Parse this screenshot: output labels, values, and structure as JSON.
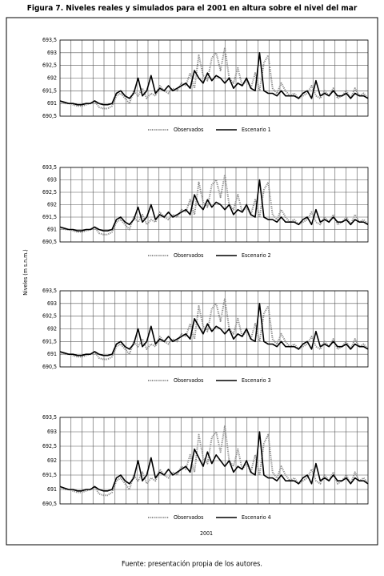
{
  "title": "Figura 7. Niveles reales y simulados para el 2001 en altura sobre el nivel del mar",
  "y_axis_label": "Niveles (m s.n.m.)",
  "x_axis_label": "2001",
  "source": "Fuente: presentación propia de los autores.",
  "chart_data": [
    {
      "type": "line",
      "ylim": [
        690.5,
        693.5
      ],
      "yticks": [
        {
          "value": 690.5,
          "label": "690,5"
        },
        691,
        {
          "value": 691.5,
          "label": "691,5"
        },
        692,
        {
          "value": 692.5,
          "label": "692,5"
        },
        693,
        {
          "value": 693.5,
          "label": "693,5"
        }
      ],
      "grid": true,
      "series": [
        {
          "name": "Observados",
          "color": "#8c8c8c",
          "line_style": "dotted",
          "values": [
            691.1,
            691.0,
            691.0,
            690.95,
            690.9,
            690.9,
            690.95,
            691.0,
            691.1,
            690.85,
            690.8,
            690.8,
            690.9,
            691.3,
            691.4,
            691.2,
            691.0,
            691.5,
            691.3,
            691.6,
            691.2,
            691.4,
            691.3,
            691.7,
            691.5,
            691.4,
            691.6,
            691.5,
            691.8,
            691.7,
            692.2,
            691.6,
            692.9,
            692.1,
            691.9,
            692.8,
            693.0,
            692.3,
            693.2,
            692.0,
            691.8,
            692.4,
            691.7,
            691.9,
            691.6,
            692.2,
            691.5,
            692.6,
            692.9,
            691.6,
            691.4,
            691.8,
            691.5,
            691.3,
            691.4,
            691.2,
            691.3,
            691.4,
            691.7,
            691.3,
            691.2,
            691.5,
            691.3,
            691.6,
            691.2,
            691.3,
            691.5,
            691.2,
            691.6,
            691.3,
            691.4,
            691.2
          ]
        },
        {
          "name": "Escenario 1",
          "color": "#000000",
          "line_style": "solid",
          "values": [
            691.1,
            691.05,
            691.0,
            691.0,
            690.95,
            690.95,
            691.0,
            691.0,
            691.1,
            691.0,
            690.95,
            690.95,
            691.0,
            691.4,
            691.5,
            691.3,
            691.2,
            691.4,
            692.0,
            691.3,
            691.5,
            692.1,
            691.4,
            691.6,
            691.5,
            691.7,
            691.5,
            691.6,
            691.7,
            691.8,
            691.6,
            692.3,
            692.0,
            691.8,
            692.2,
            691.9,
            692.1,
            692.0,
            691.8,
            692.0,
            691.6,
            691.8,
            691.7,
            692.0,
            691.6,
            691.5,
            693.0,
            691.5,
            691.4,
            691.4,
            691.3,
            691.5,
            691.3,
            691.3,
            691.3,
            691.2,
            691.4,
            691.5,
            691.2,
            691.9,
            691.3,
            691.4,
            691.3,
            691.5,
            691.3,
            691.3,
            691.4,
            691.2,
            691.4,
            691.3,
            691.3,
            691.2
          ]
        }
      ]
    },
    {
      "type": "line",
      "ylim": [
        690.5,
        693.5
      ],
      "yticks": [
        {
          "value": 690.5,
          "label": "690,5"
        },
        691,
        {
          "value": 691.5,
          "label": "691,5"
        },
        692,
        {
          "value": 692.5,
          "label": "692,5"
        },
        693,
        {
          "value": 693.5,
          "label": "693,5"
        }
      ],
      "grid": true,
      "series": [
        {
          "name": "Observados",
          "color": "#8c8c8c",
          "line_style": "dotted",
          "values": [
            691.1,
            691.0,
            691.0,
            690.95,
            690.9,
            690.9,
            690.95,
            691.0,
            691.1,
            690.85,
            690.8,
            690.8,
            690.9,
            691.3,
            691.4,
            691.2,
            691.0,
            691.5,
            691.3,
            691.6,
            691.2,
            691.4,
            691.3,
            691.7,
            691.5,
            691.4,
            691.6,
            691.5,
            691.8,
            691.7,
            692.2,
            691.6,
            692.9,
            692.1,
            691.9,
            692.8,
            693.0,
            692.3,
            693.2,
            692.0,
            691.8,
            692.4,
            691.7,
            691.9,
            691.6,
            692.2,
            691.5,
            692.6,
            692.9,
            691.6,
            691.4,
            691.8,
            691.5,
            691.3,
            691.4,
            691.2,
            691.3,
            691.4,
            691.7,
            691.3,
            691.2,
            691.5,
            691.3,
            691.6,
            691.2,
            691.3,
            691.5,
            691.2,
            691.6,
            691.3,
            691.4,
            691.2
          ]
        },
        {
          "name": "Escenario 2",
          "color": "#000000",
          "line_style": "solid",
          "values": [
            691.1,
            691.05,
            691.0,
            691.0,
            690.95,
            690.95,
            691.0,
            691.0,
            691.1,
            691.0,
            690.95,
            690.95,
            691.0,
            691.4,
            691.5,
            691.3,
            691.2,
            691.4,
            691.9,
            691.3,
            691.5,
            692.0,
            691.4,
            691.6,
            691.5,
            691.7,
            691.5,
            691.6,
            691.7,
            691.8,
            691.6,
            692.4,
            692.0,
            691.8,
            692.2,
            691.9,
            692.1,
            692.0,
            691.8,
            692.0,
            691.6,
            691.8,
            691.7,
            692.0,
            691.6,
            691.5,
            693.0,
            691.5,
            691.4,
            691.4,
            691.3,
            691.5,
            691.3,
            691.3,
            691.3,
            691.2,
            691.4,
            691.5,
            691.2,
            691.8,
            691.3,
            691.4,
            691.3,
            691.5,
            691.3,
            691.3,
            691.4,
            691.2,
            691.4,
            691.3,
            691.3,
            691.2
          ]
        }
      ]
    },
    {
      "type": "line",
      "ylim": [
        690.5,
        693.5
      ],
      "yticks": [
        {
          "value": 690.5,
          "label": "690,5"
        },
        691,
        {
          "value": 691.5,
          "label": "691,5"
        },
        692,
        {
          "value": 692.5,
          "label": "692,5"
        },
        693,
        {
          "value": 693.5,
          "label": "693,5"
        }
      ],
      "grid": true,
      "series": [
        {
          "name": "Observados",
          "color": "#8c8c8c",
          "line_style": "dotted",
          "values": [
            691.1,
            691.0,
            691.0,
            690.95,
            690.9,
            690.9,
            690.95,
            691.0,
            691.1,
            690.85,
            690.8,
            690.8,
            690.9,
            691.3,
            691.4,
            691.2,
            691.0,
            691.5,
            691.3,
            691.6,
            691.2,
            691.4,
            691.3,
            691.7,
            691.5,
            691.4,
            691.6,
            691.5,
            691.8,
            691.7,
            692.2,
            691.6,
            692.9,
            692.1,
            691.9,
            692.8,
            693.0,
            692.3,
            693.2,
            692.0,
            691.8,
            692.4,
            691.7,
            691.9,
            691.6,
            692.2,
            691.5,
            692.6,
            692.9,
            691.6,
            691.4,
            691.8,
            691.5,
            691.3,
            691.4,
            691.2,
            691.3,
            691.4,
            691.7,
            691.3,
            691.2,
            691.5,
            691.3,
            691.6,
            691.2,
            691.3,
            691.5,
            691.2,
            691.6,
            691.3,
            691.4,
            691.2
          ]
        },
        {
          "name": "Escenario 3",
          "color": "#000000",
          "line_style": "solid",
          "values": [
            691.1,
            691.05,
            691.0,
            691.0,
            690.95,
            690.95,
            691.0,
            691.0,
            691.1,
            691.0,
            690.95,
            690.95,
            691.0,
            691.4,
            691.5,
            691.3,
            691.2,
            691.4,
            692.0,
            691.3,
            691.5,
            692.1,
            691.4,
            691.6,
            691.5,
            691.7,
            691.5,
            691.6,
            691.7,
            691.8,
            691.6,
            692.4,
            692.1,
            691.8,
            692.2,
            691.9,
            692.1,
            692.0,
            691.8,
            692.0,
            691.6,
            691.8,
            691.7,
            692.0,
            691.6,
            691.5,
            693.0,
            691.5,
            691.4,
            691.4,
            691.3,
            691.5,
            691.3,
            691.3,
            691.3,
            691.2,
            691.4,
            691.5,
            691.2,
            691.9,
            691.3,
            691.4,
            691.3,
            691.5,
            691.3,
            691.3,
            691.4,
            691.2,
            691.4,
            691.3,
            691.3,
            691.2
          ]
        }
      ]
    },
    {
      "type": "line",
      "ylim": [
        690.5,
        693.5
      ],
      "yticks": [
        {
          "value": 690.5,
          "label": "690,5"
        },
        691,
        {
          "value": 691.5,
          "label": "691,5"
        },
        692,
        {
          "value": 692.5,
          "label": "692,5"
        },
        693,
        {
          "value": 693.5,
          "label": "693,5"
        }
      ],
      "grid": true,
      "series": [
        {
          "name": "Observados",
          "color": "#8c8c8c",
          "line_style": "dotted",
          "values": [
            691.1,
            691.0,
            691.0,
            690.95,
            690.9,
            690.9,
            690.95,
            691.0,
            691.1,
            690.85,
            690.8,
            690.8,
            690.9,
            691.3,
            691.4,
            691.2,
            691.0,
            691.5,
            691.3,
            691.6,
            691.2,
            691.4,
            691.3,
            691.7,
            691.5,
            691.4,
            691.6,
            691.5,
            691.8,
            691.7,
            692.2,
            691.6,
            692.9,
            692.1,
            691.9,
            692.8,
            693.0,
            692.3,
            693.2,
            692.0,
            691.8,
            692.4,
            691.7,
            691.9,
            691.6,
            692.2,
            691.5,
            692.6,
            692.9,
            691.6,
            691.4,
            691.8,
            691.5,
            691.3,
            691.4,
            691.2,
            691.3,
            691.4,
            691.7,
            691.3,
            691.2,
            691.5,
            691.3,
            691.6,
            691.2,
            691.3,
            691.5,
            691.2,
            691.6,
            691.3,
            691.4,
            691.2
          ]
        },
        {
          "name": "Escenario 4",
          "color": "#000000",
          "line_style": "solid",
          "values": [
            691.1,
            691.05,
            691.0,
            691.0,
            690.95,
            690.95,
            691.0,
            691.0,
            691.1,
            691.0,
            690.95,
            690.95,
            691.0,
            691.4,
            691.5,
            691.3,
            691.2,
            691.4,
            692.0,
            691.3,
            691.5,
            692.1,
            691.4,
            691.6,
            691.5,
            691.7,
            691.5,
            691.6,
            691.7,
            691.8,
            691.6,
            692.4,
            692.1,
            691.8,
            692.3,
            691.9,
            692.2,
            692.0,
            691.8,
            692.0,
            691.6,
            691.8,
            691.7,
            692.0,
            691.6,
            691.5,
            693.0,
            691.5,
            691.4,
            691.4,
            691.3,
            691.5,
            691.3,
            691.3,
            691.3,
            691.2,
            691.4,
            691.5,
            691.2,
            691.9,
            691.3,
            691.4,
            691.3,
            691.5,
            691.3,
            691.3,
            691.4,
            691.2,
            691.4,
            691.3,
            691.3,
            691.2
          ]
        }
      ]
    }
  ]
}
